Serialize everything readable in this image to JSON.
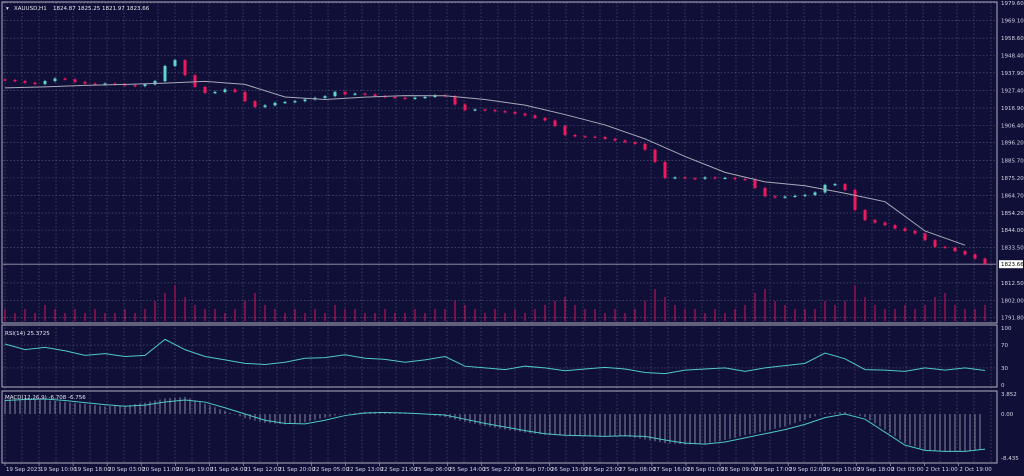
{
  "window": {
    "symbol_label": "XAUUSD,H1",
    "ohlc_label": "1824.87 1825.25 1821.97 1823.66",
    "current_price_label": "1823.66"
  },
  "colors": {
    "background": "#0f0f38",
    "grid": "#5a5a7a",
    "bull": "#5fd6cc",
    "bear": "#f0195e",
    "ma": "#a9a9b8",
    "volume": "#d4145a",
    "rsi": "#4fc9c4",
    "macd_signal": "#4fc9c4",
    "macd_hist": "#b8b8c8"
  },
  "chart_data": [
    {
      "type": "candlestick",
      "title": "XAUUSD,H1",
      "ylim": [
        1791.8,
        1979.6
      ],
      "price_ticks": [
        "1979.60",
        "1969.10",
        "1958.60",
        "1948.40",
        "1937.90",
        "1927.40",
        "1916.90",
        "1906.40",
        "1896.20",
        "1885.70",
        "1875.20",
        "1864.70",
        "1854.20",
        "1844.00",
        "1833.50",
        "1823.66",
        "1812.50",
        "1802.00",
        "1791.80"
      ],
      "price_tick_values": [
        1979.6,
        1969.1,
        1958.6,
        1948.4,
        1937.9,
        1927.4,
        1916.9,
        1906.4,
        1896.2,
        1885.7,
        1875.2,
        1864.7,
        1854.2,
        1844.0,
        1833.5,
        1823.66,
        1812.5,
        1802.0,
        1791.8
      ],
      "closes": [
        1933.6,
        1933,
        1932,
        1931.2,
        1933,
        1934.5,
        1934,
        1932.5,
        1931.5,
        1931,
        1931.5,
        1931,
        1930.5,
        1930,
        1931,
        1933,
        1942,
        1945.5,
        1936.5,
        1929.5,
        1925.9,
        1926.5,
        1928,
        1926.5,
        1921,
        1917.5,
        1918.5,
        1920,
        1920.5,
        1921,
        1922,
        1923,
        1924,
        1926.5,
        1925,
        1925.5,
        1925,
        1924,
        1923.5,
        1923,
        1922.5,
        1923,
        1923.5,
        1924.5,
        1924,
        1919,
        1915.7,
        1916,
        1915.7,
        1915,
        1914.5,
        1913.5,
        1912.5,
        1911,
        1909.5,
        1906.2,
        1900.8,
        1900,
        1899.8,
        1899.6,
        1898.5,
        1897.5,
        1896.5,
        1895.5,
        1892,
        1884.7,
        1875.1,
        1875.5,
        1875,
        1874.7,
        1875.5,
        1875,
        1875.2,
        1874.5,
        1874.2,
        1869.2,
        1864.2,
        1863.5,
        1864,
        1864.5,
        1865,
        1866.5,
        1871,
        1871.5,
        1868,
        1856,
        1850,
        1848.5,
        1847,
        1845,
        1843.5,
        1842,
        1838,
        1834,
        1833.5,
        1831.5,
        1829.5,
        1827,
        1823.66
      ],
      "moving_average": [
        1928.9,
        1929.5,
        1930.4,
        1931,
        1931.8,
        1932.8,
        1931,
        1923.5,
        1922,
        1923.4,
        1924.3,
        1924.2,
        1922,
        1918.6,
        1913,
        1906.8,
        1898.5,
        1888,
        1878.5,
        1872.8,
        1870.5,
        1866,
        1861,
        1843.5,
        1835
      ],
      "volumes": [
        3,
        2,
        3,
        2,
        4,
        3,
        2,
        3,
        2,
        3,
        2,
        2,
        3,
        2,
        3,
        5,
        7,
        9,
        6,
        4,
        3,
        3,
        2,
        3,
        5,
        7,
        4,
        3,
        2,
        3,
        2,
        3,
        2,
        4,
        3,
        3,
        2,
        2,
        3,
        2,
        2,
        3,
        2,
        3,
        3,
        5,
        4,
        3,
        2,
        3,
        2,
        3,
        2,
        3,
        4,
        5,
        6,
        4,
        3,
        3,
        2,
        3,
        2,
        3,
        5,
        8,
        6,
        4,
        3,
        3,
        2,
        3,
        2,
        3,
        4,
        7,
        8,
        5,
        4,
        3,
        3,
        3,
        5,
        4,
        5,
        9,
        6,
        4,
        3,
        3,
        4,
        3,
        4,
        6,
        7,
        4,
        3,
        3,
        4
      ]
    },
    {
      "type": "line",
      "title": "RSI(14) 25.3725",
      "ylim": [
        0,
        100
      ],
      "ticks": [
        "100",
        "70",
        "30",
        "0"
      ],
      "tick_values": [
        100,
        70,
        30,
        0
      ],
      "values": [
        72,
        62,
        66,
        60,
        52,
        55,
        50,
        52,
        80,
        62,
        50,
        44,
        38,
        36,
        40,
        47,
        48,
        53,
        47,
        45,
        40,
        44,
        50,
        33,
        30,
        27,
        33,
        30,
        25,
        28,
        31,
        28,
        22,
        20,
        26,
        28,
        30,
        24,
        30,
        34,
        38,
        56,
        46,
        27,
        26,
        24,
        30,
        26,
        30,
        25.37
      ]
    },
    {
      "type": "bar",
      "title": "MACD(12,26,9) -6.708 -6.756",
      "ylim": [
        -8.435,
        3.852
      ],
      "ticks": [
        "3.852",
        "0.00",
        "-8.435"
      ],
      "tick_values": [
        3.852,
        0,
        -8.435
      ],
      "histogram": [
        2.8,
        2.9,
        2.7,
        2.3,
        1.9,
        1.5,
        1.6,
        2.2,
        3.0,
        3.3,
        2.0,
        0.6,
        -0.8,
        -1.7,
        -2.0,
        -1.6,
        -0.7,
        0.1,
        0.4,
        0.4,
        0.2,
        -0.1,
        -0.6,
        -1.5,
        -2.3,
        -3.0,
        -3.6,
        -4.0,
        -4.2,
        -4.3,
        -4.2,
        -4.3,
        -4.9,
        -5.6,
        -5.9,
        -5.7,
        -5.0,
        -4.1,
        -3.3,
        -2.4,
        -1.1,
        0.2,
        0.4,
        -0.6,
        -3.0,
        -5.6,
        -6.9,
        -7.3,
        -7.2,
        -6.708
      ],
      "signal": [
        2.6,
        2.8,
        2.9,
        2.6,
        2.2,
        1.8,
        1.5,
        1.7,
        2.3,
        2.7,
        2.3,
        1.2,
        0,
        -1.2,
        -1.8,
        -1.9,
        -1.2,
        -0.3,
        0.2,
        0.3,
        0.2,
        0,
        -0.2,
        -1,
        -1.8,
        -2.5,
        -3.2,
        -3.8,
        -4.1,
        -4.2,
        -4.3,
        -4.2,
        -4.3,
        -5,
        -5.6,
        -5.8,
        -5.4,
        -4.6,
        -3.8,
        -3,
        -2,
        -0.7,
        0,
        -1,
        -3.5,
        -6,
        -7,
        -7.2,
        -7.2,
        -6.756
      ]
    }
  ],
  "time_axis": [
    "19 Sep 2023",
    "19 Sep 10:00",
    "19 Sep 18:00",
    "20 Sep 03:00",
    "20 Sep 11:00",
    "20 Sep 19:00",
    "21 Sep 04:00",
    "21 Sep 12:00",
    "21 Sep 20:00",
    "22 Sep 05:00",
    "22 Sep 13:00",
    "22 Sep 21:00",
    "25 Sep 06:00",
    "25 Sep 14:00",
    "25 Sep 22:00",
    "26 Sep 07:00",
    "26 Sep 15:00",
    "26 Sep 23:00",
    "27 Sep 08:00",
    "27 Sep 16:00",
    "28 Sep 01:00",
    "28 Sep 09:00",
    "28 Sep 17:00",
    "29 Sep 02:00",
    "29 Sep 10:00",
    "29 Sep 18:00",
    "2 Oct 03:00",
    "2 Oct 11:00",
    "2 Oct 19:00"
  ]
}
